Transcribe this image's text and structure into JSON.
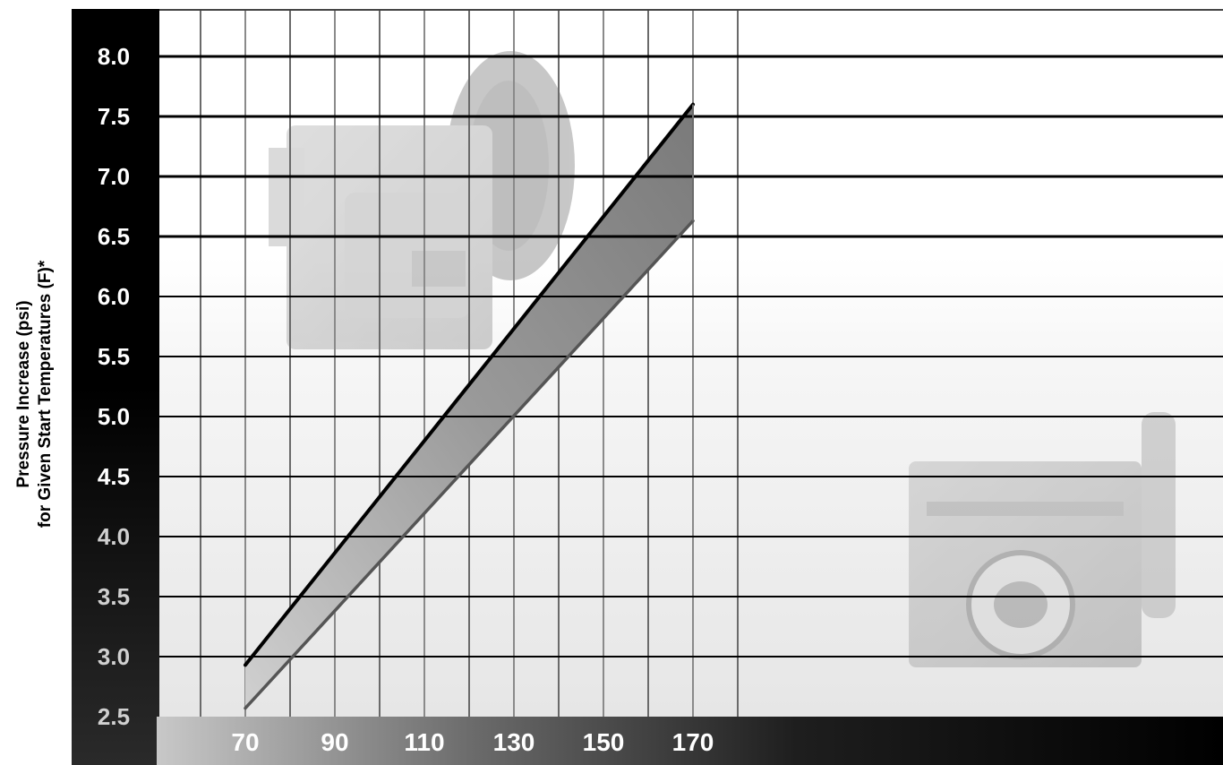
{
  "chart_data": {
    "type": "area",
    "title": "",
    "ylabel": [
      "Pressure Increase (psi)",
      "for Given Start Temperatures (F)*"
    ],
    "xlabel": "",
    "x_ticks": [
      "70",
      "90",
      "110",
      "130",
      "150",
      "170"
    ],
    "y_ticks": [
      "2.5",
      "3.0",
      "3.5",
      "4.0",
      "4.5",
      "5.0",
      "5.5",
      "6.0",
      "6.5",
      "7.0",
      "7.5",
      "8.0"
    ],
    "xlim": [
      60,
      170
    ],
    "ylim": [
      2.5,
      8.0
    ],
    "grid": true,
    "series": [
      {
        "x": [
          70,
          170
        ],
        "y": [
          2.93,
          7.6
        ],
        "color": "#000000"
      },
      {
        "x": [
          70,
          170
        ],
        "y": [
          2.57,
          6.63
        ],
        "color": "#555555"
      }
    ],
    "band_fill": [
      "#c8c8c8",
      "#8a8a8a"
    ]
  }
}
